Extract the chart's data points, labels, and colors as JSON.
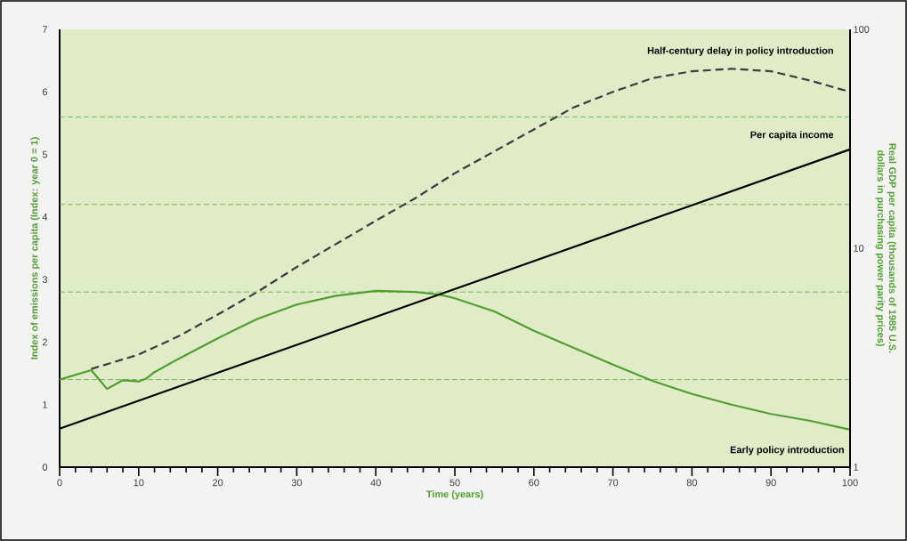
{
  "chart_data": {
    "type": "line",
    "xlabel": "Time (years)",
    "ylabel": "Index of emissions per capita (Index: year 0 = 1)",
    "y2label": "Real GDP per capita (thousands of 1985 U.S. dollars in purchasing power parity prices)",
    "xlim": [
      0,
      100
    ],
    "ylim": [
      0,
      7
    ],
    "y2lim": [
      1,
      100
    ],
    "xticks": [
      0,
      10,
      20,
      30,
      40,
      50,
      60,
      70,
      80,
      90,
      100
    ],
    "yticks": [
      0,
      1,
      2,
      3,
      4,
      5,
      6,
      7
    ],
    "y2ticks": [
      1,
      10,
      100
    ],
    "log": "y2",
    "ref_lines": [
      {
        "axis": "y",
        "value": 1.4,
        "color": "#5aaa3c",
        "line_style": "dashed"
      },
      {
        "axis": "y",
        "value": 2.8,
        "color": "#5aaa3c",
        "line_style": "dashed"
      },
      {
        "axis": "y",
        "value": 4.2,
        "color": "#5aaa3c",
        "line_style": "dashed"
      },
      {
        "axis": "y",
        "value": 5.6,
        "color": "#5aaa3c",
        "line_style": "dashed"
      }
    ],
    "series": [
      {
        "name": "Early policy introduction",
        "color": "#4f9e2f",
        "line_style": "solid",
        "x": [
          0,
          4,
          6,
          8,
          10,
          11,
          12,
          15,
          20,
          25,
          30,
          35,
          40,
          45,
          48,
          50,
          55,
          60,
          65,
          70,
          75,
          80,
          85,
          90,
          95,
          100
        ],
        "values": [
          1.4,
          1.55,
          1.25,
          1.39,
          1.37,
          1.42,
          1.52,
          1.73,
          2.06,
          2.37,
          2.6,
          2.74,
          2.82,
          2.8,
          2.76,
          2.7,
          2.49,
          2.18,
          1.91,
          1.64,
          1.38,
          1.17,
          1.0,
          0.85,
          0.74,
          0.6
        ]
      },
      {
        "name": "Half-century delay in policy introduction",
        "color": "#3c3c3c",
        "line_style": "dashed",
        "x": [
          4,
          10,
          15,
          20,
          25,
          30,
          35,
          40,
          45,
          50,
          55,
          60,
          65,
          70,
          75,
          80,
          85,
          90,
          95,
          100
        ],
        "values": [
          1.57,
          1.8,
          2.09,
          2.44,
          2.8,
          3.2,
          3.57,
          3.94,
          4.3,
          4.7,
          5.05,
          5.4,
          5.75,
          6.0,
          6.22,
          6.33,
          6.37,
          6.33,
          6.18,
          6.0
        ]
      },
      {
        "name": "Per capita income",
        "color": "#000000",
        "line_style": "solid",
        "axis": "y2",
        "x": [
          0,
          100
        ],
        "values": [
          1.5,
          28.3
        ]
      }
    ]
  }
}
